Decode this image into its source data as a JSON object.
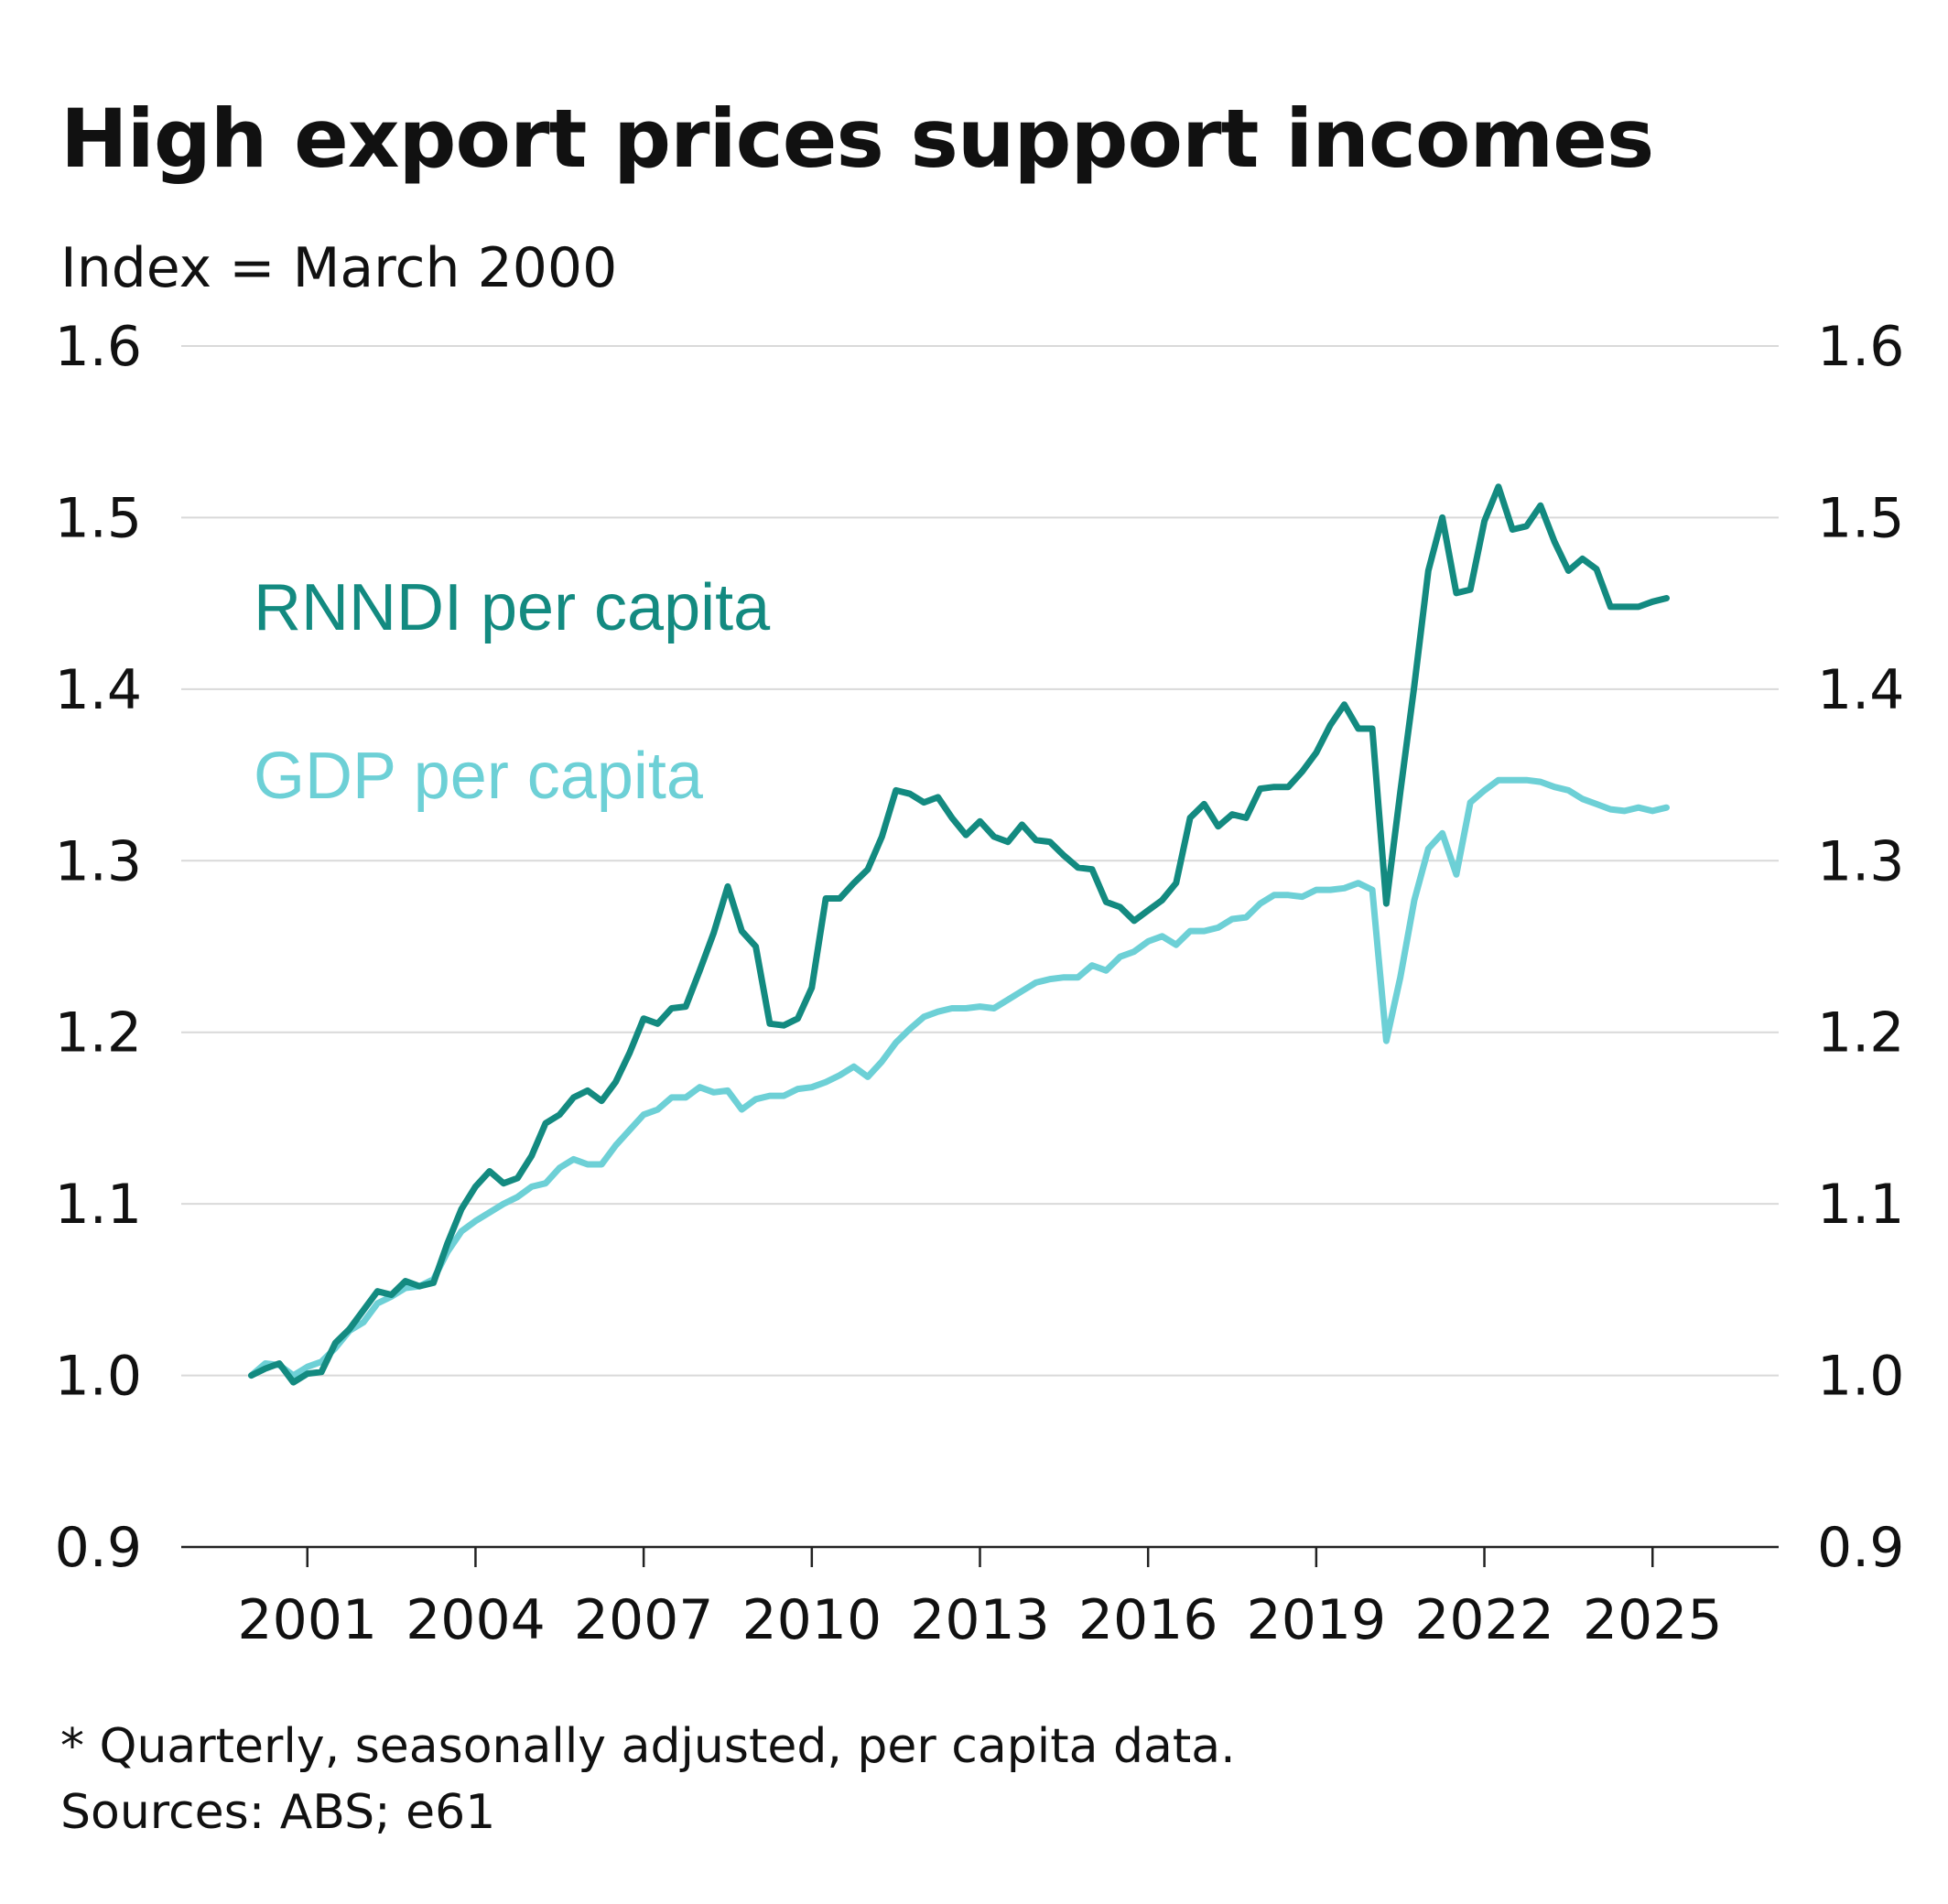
{
  "header": {
    "title": "High export prices support incomes",
    "subtitle": "Index = March 2000"
  },
  "footer": {
    "note": "* Quarterly, seasonally adjusted, per capita data.",
    "source": "Sources: ABS; e61"
  },
  "colors": {
    "rnndi": "#138a80",
    "gdp": "#6dd0d6",
    "grid": "#d9d9d9",
    "axis": "#222222"
  },
  "chart_data": {
    "type": "line",
    "ylim": [
      0.9,
      1.6
    ],
    "xlim": [
      1998.75,
      2027.25
    ],
    "grid": true,
    "yticks": [
      0.9,
      1.0,
      1.1,
      1.2,
      1.3,
      1.4,
      1.5,
      1.6
    ],
    "ytick_labels": [
      "0.9",
      "1.0",
      "1.1",
      "1.2",
      "1.3",
      "1.4",
      "1.5",
      "1.6"
    ],
    "xticks": [
      2001,
      2004,
      2007,
      2010,
      2013,
      2016,
      2019,
      2022,
      2025
    ],
    "xtick_labels": [
      "2001",
      "2004",
      "2007",
      "2010",
      "2013",
      "2016",
      "2019",
      "2022",
      "2025"
    ],
    "x_start": 2000.0,
    "x_step": 0.25,
    "series": [
      {
        "name": "RNNDI per capita",
        "values": [
          1.0,
          1.004,
          1.007,
          0.996,
          1.001,
          1.002,
          1.019,
          1.027,
          1.038,
          1.049,
          1.047,
          1.055,
          1.052,
          1.054,
          1.077,
          1.097,
          1.11,
          1.119,
          1.112,
          1.115,
          1.128,
          1.147,
          1.152,
          1.162,
          1.166,
          1.16,
          1.171,
          1.188,
          1.208,
          1.205,
          1.214,
          1.215,
          1.236,
          1.258,
          1.285,
          1.259,
          1.25,
          1.205,
          1.204,
          1.208,
          1.226,
          1.278,
          1.278,
          1.287,
          1.295,
          1.314,
          1.341,
          1.339,
          1.334,
          1.337,
          1.325,
          1.315,
          1.323,
          1.314,
          1.311,
          1.321,
          1.312,
          1.311,
          1.303,
          1.296,
          1.295,
          1.276,
          1.273,
          1.265,
          1.271,
          1.277,
          1.287,
          1.325,
          1.333,
          1.32,
          1.327,
          1.325,
          1.342,
          1.343,
          1.343,
          1.352,
          1.363,
          1.379,
          1.391,
          1.377,
          1.377,
          1.275,
          1.34,
          1.402,
          1.469,
          1.5,
          1.456,
          1.458,
          1.498,
          1.518,
          1.493,
          1.495,
          1.507,
          1.486,
          1.469,
          1.476,
          1.47,
          1.448,
          1.448,
          1.448,
          1.451,
          1.453
        ]
      },
      {
        "name": "GDP per capita",
        "values": [
          1.0,
          1.007,
          1.006,
          1.0,
          1.005,
          1.008,
          1.016,
          1.026,
          1.031,
          1.042,
          1.046,
          1.051,
          1.052,
          1.056,
          1.072,
          1.084,
          1.09,
          1.095,
          1.1,
          1.104,
          1.11,
          1.112,
          1.121,
          1.126,
          1.123,
          1.123,
          1.134,
          1.143,
          1.152,
          1.155,
          1.162,
          1.162,
          1.168,
          1.165,
          1.166,
          1.155,
          1.161,
          1.163,
          1.163,
          1.167,
          1.168,
          1.171,
          1.175,
          1.18,
          1.174,
          1.183,
          1.194,
          1.202,
          1.209,
          1.212,
          1.214,
          1.214,
          1.215,
          1.214,
          1.219,
          1.224,
          1.229,
          1.231,
          1.232,
          1.232,
          1.239,
          1.236,
          1.244,
          1.247,
          1.253,
          1.256,
          1.251,
          1.259,
          1.259,
          1.261,
          1.266,
          1.267,
          1.275,
          1.28,
          1.28,
          1.279,
          1.283,
          1.283,
          1.284,
          1.287,
          1.283,
          1.195,
          1.232,
          1.277,
          1.307,
          1.316,
          1.292,
          1.334,
          1.341,
          1.347,
          1.347,
          1.347,
          1.346,
          1.343,
          1.341,
          1.336,
          1.333,
          1.33,
          1.329,
          1.331,
          1.329,
          1.331
        ]
      }
    ]
  }
}
